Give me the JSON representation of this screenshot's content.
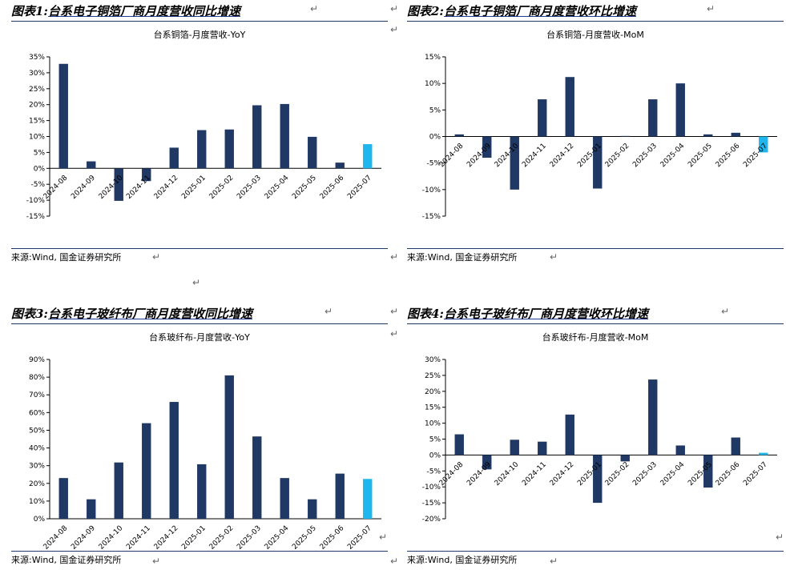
{
  "panels": [
    {
      "heading_prefix": "图表1:",
      "heading_main": "台系电子铜箔厂商月度营收同比增速",
      "source": "来源:Wind, 国金证券研究所",
      "chart_data": {
        "type": "bar",
        "title": "台系铜箔-月度营收-YoY",
        "categories": [
          "2024-08",
          "2024-09",
          "2024-10",
          "2024-11",
          "2024-12",
          "2025-01",
          "2025-02",
          "2025-03",
          "2025-04",
          "2025-05",
          "2025-06",
          "2025-07"
        ],
        "values": [
          32.8,
          2.2,
          -10.2,
          -4.0,
          6.5,
          12.0,
          12.2,
          19.8,
          20.2,
          9.9,
          1.8,
          7.6
        ],
        "highlight_last": true,
        "ylim": [
          -15,
          35
        ],
        "yticks": [
          -15,
          -10,
          -5,
          0,
          5,
          10,
          15,
          20,
          25,
          30,
          35
        ],
        "ytick_labels": [
          "-15%",
          "-10%",
          "-5%",
          "0%",
          "5%",
          "10%",
          "15%",
          "20%",
          "25%",
          "30%",
          "35%"
        ],
        "colors": {
          "main": "#1f3864",
          "highlight": "#1fb6ee"
        }
      }
    },
    {
      "heading_prefix": "图表2:",
      "heading_main": "台系电子铜箔厂商月度营收环比增速",
      "source": "来源:Wind, 国金证券研究所",
      "chart_data": {
        "type": "bar",
        "title": "台系铜箔-月度营收-MoM",
        "categories": [
          "2024-08",
          "2024-09",
          "2024-10",
          "2024-11",
          "2024-12",
          "2025-01",
          "2025-02",
          "2025-03",
          "2025-04",
          "2025-05",
          "2025-06",
          "2025-07"
        ],
        "values": [
          0.4,
          -4.0,
          -10.0,
          7.0,
          11.2,
          -9.8,
          0.1,
          7.0,
          10.0,
          0.4,
          0.7,
          -3.0
        ],
        "highlight_last": true,
        "ylim": [
          -15,
          15
        ],
        "yticks": [
          -15,
          -10,
          -5,
          0,
          5,
          10,
          15
        ],
        "ytick_labels": [
          "-15%",
          "-10%",
          "-5%",
          "0%",
          "5%",
          "10%",
          "15%"
        ],
        "colors": {
          "main": "#1f3864",
          "highlight": "#1fb6ee"
        }
      }
    },
    {
      "heading_prefix": "图表3:",
      "heading_main": "台系电子玻纤布厂商月度营收同比增速",
      "source": "来源:Wind, 国金证券研究所",
      "chart_data": {
        "type": "bar",
        "title": "台系玻纤布-月度营收-YoY",
        "categories": [
          "2024-08",
          "2024-09",
          "2024-10",
          "2024-11",
          "2024-12",
          "2025-01",
          "2025-02",
          "2025-03",
          "2025-04",
          "2025-05",
          "2025-06",
          "2025-07"
        ],
        "values": [
          23.0,
          11.0,
          31.8,
          54.0,
          66.0,
          30.8,
          81.0,
          46.5,
          23.0,
          11.0,
          25.5,
          22.5
        ],
        "highlight_last": true,
        "ylim": [
          0,
          90
        ],
        "yticks": [
          0,
          10,
          20,
          30,
          40,
          50,
          60,
          70,
          80,
          90
        ],
        "ytick_labels": [
          "0%",
          "10%",
          "20%",
          "30%",
          "40%",
          "50%",
          "60%",
          "70%",
          "80%",
          "90%"
        ],
        "colors": {
          "main": "#1f3864",
          "highlight": "#1fb6ee"
        }
      }
    },
    {
      "heading_prefix": "图表4:",
      "heading_main": "台系电子玻纤布厂商月度营收环比增速",
      "source": "来源:Wind, 国金证券研究所",
      "chart_data": {
        "type": "bar",
        "title": "台系玻纤布-月度营收-MoM",
        "categories": [
          "2024-08",
          "2024-09",
          "2024-10",
          "2024-11",
          "2024-12",
          "2025-01",
          "2025-02",
          "2025-03",
          "2025-04",
          "2025-05",
          "2025-06",
          "2025-07"
        ],
        "values": [
          6.5,
          -4.5,
          4.8,
          4.2,
          12.7,
          -15.0,
          -2.0,
          23.7,
          3.0,
          -10.2,
          5.5,
          0.7
        ],
        "highlight_last": true,
        "ylim": [
          -20,
          30
        ],
        "yticks": [
          -20,
          -15,
          -10,
          -5,
          0,
          5,
          10,
          15,
          20,
          25,
          30
        ],
        "ytick_labels": [
          "-20%",
          "-15%",
          "-10%",
          "-5%",
          "0%",
          "5%",
          "10%",
          "15%",
          "20%",
          "25%",
          "30%"
        ],
        "colors": {
          "main": "#1f3864",
          "highlight": "#1fb6ee"
        }
      }
    }
  ],
  "return_glyph": "↵"
}
